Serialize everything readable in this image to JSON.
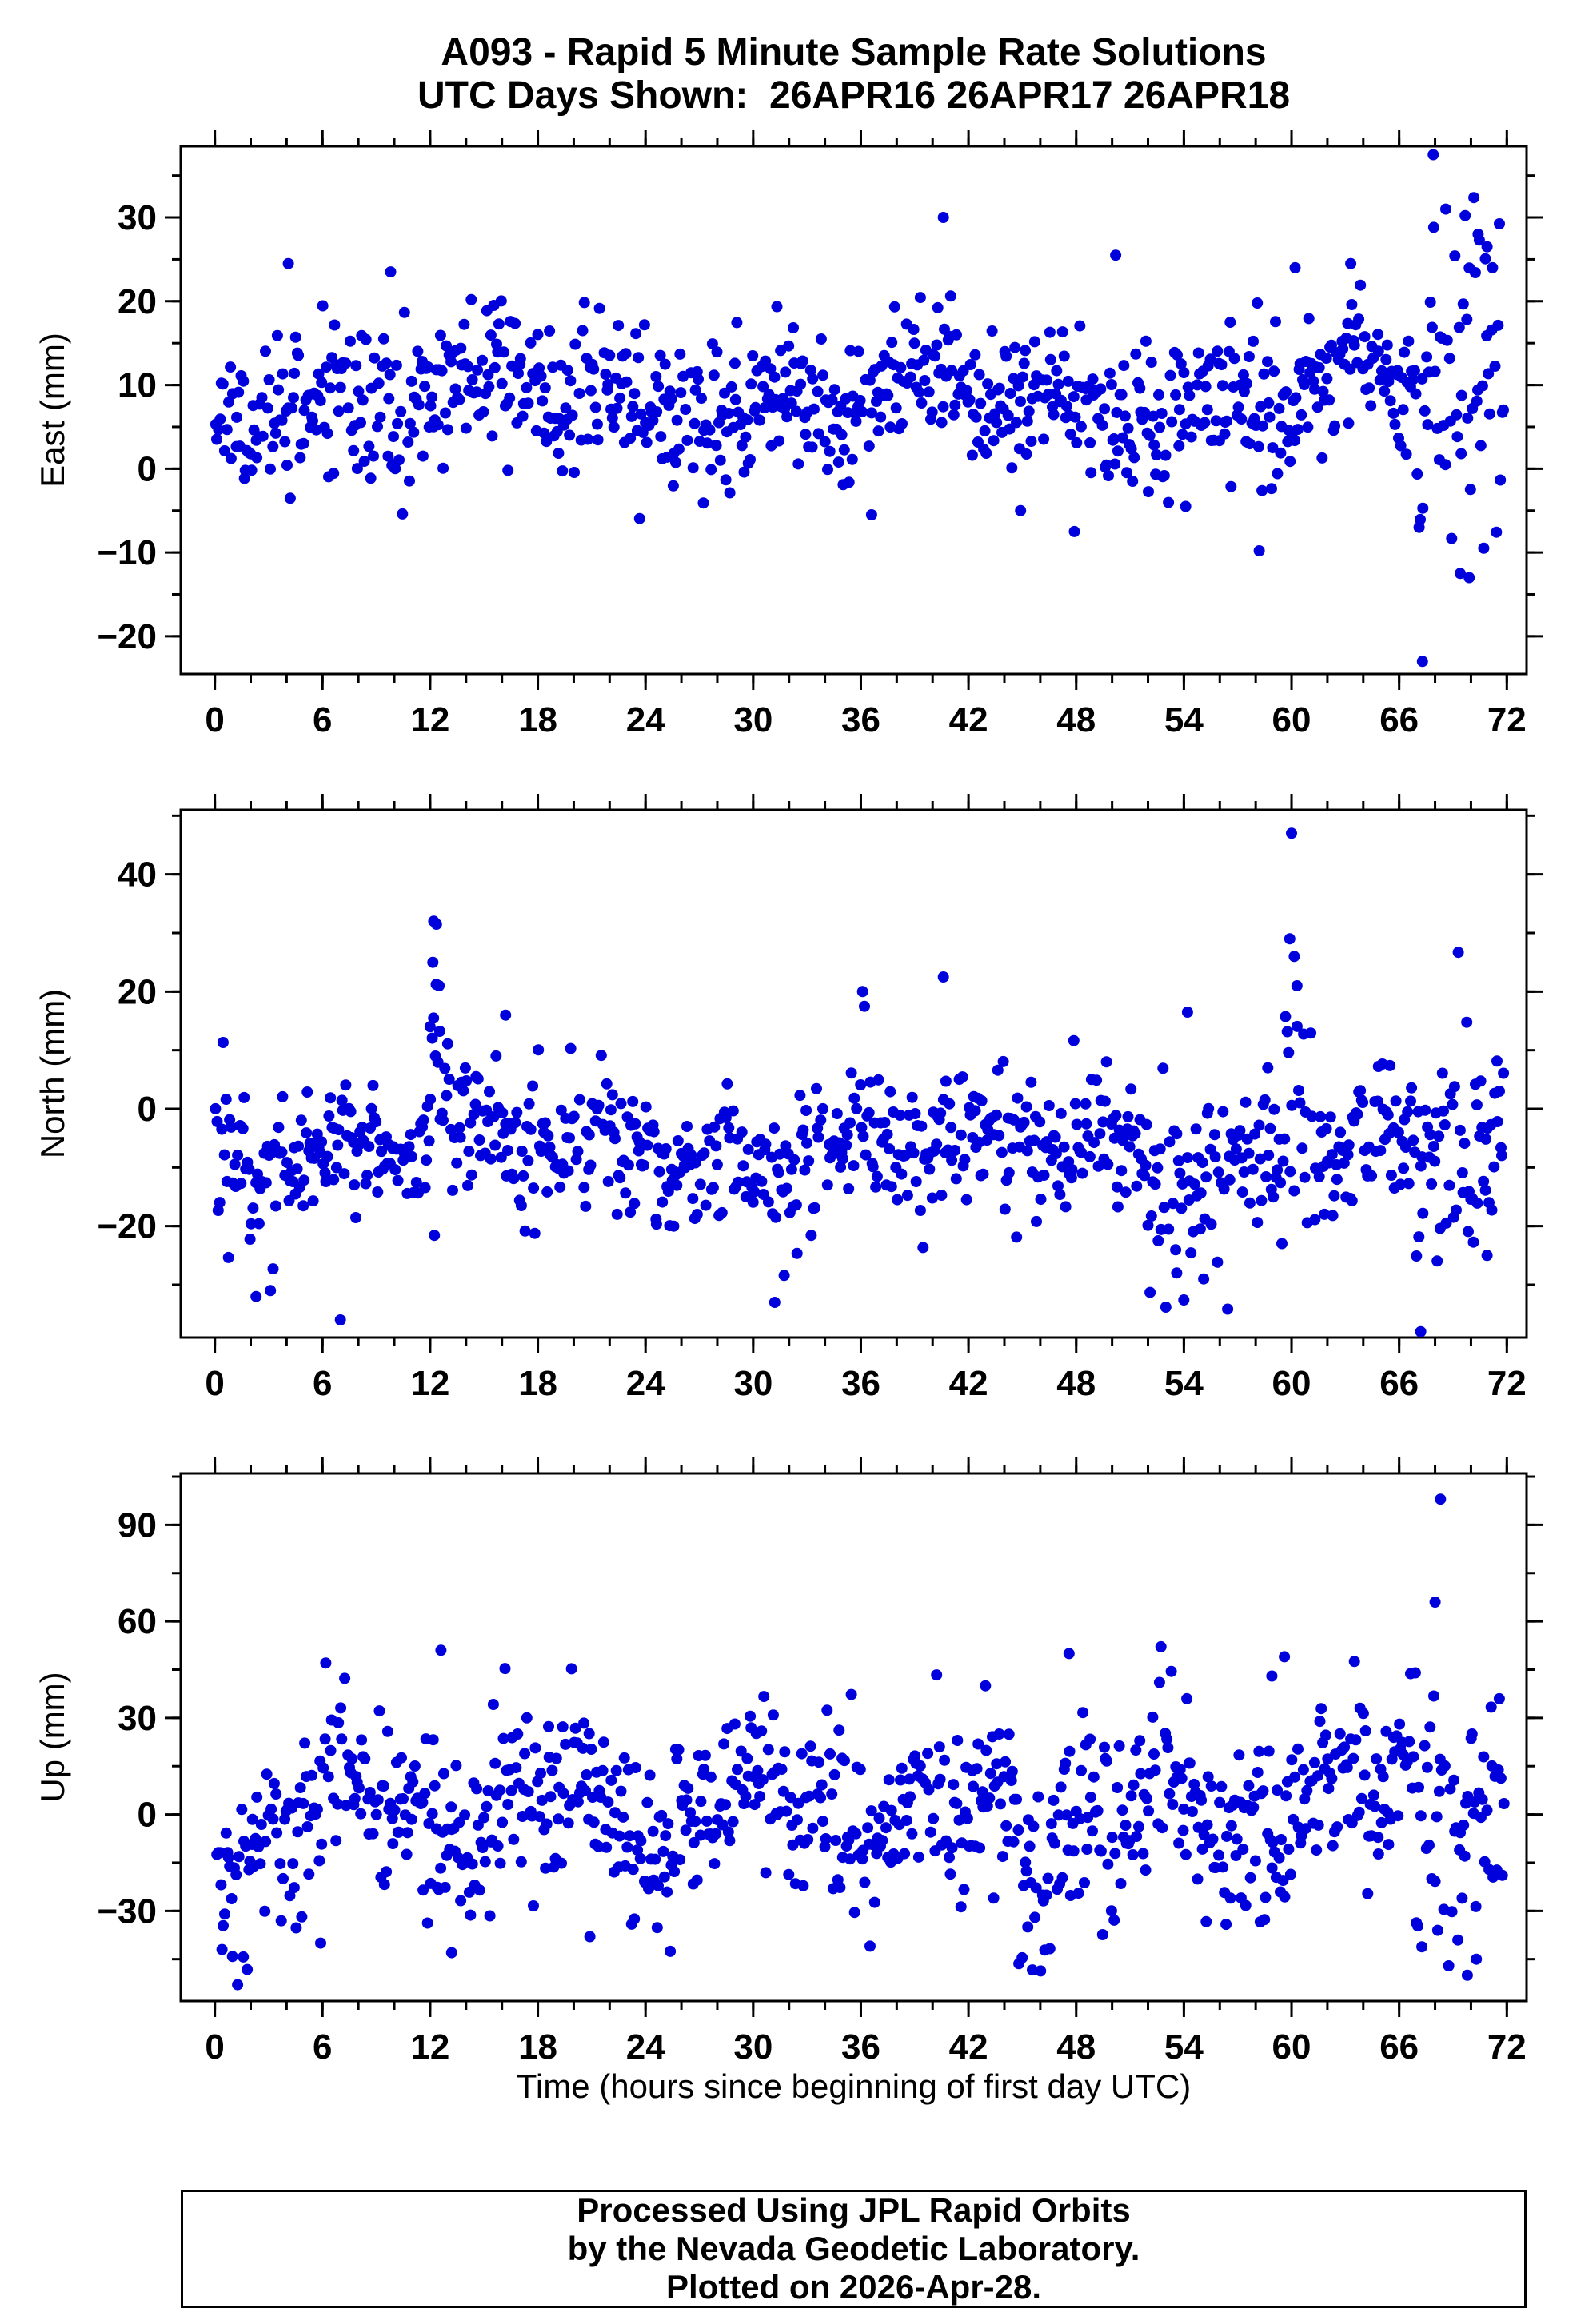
{
  "title_line1": "A093 - Rapid 5 Minute Sample Rate Solutions",
  "title_line2": "UTC Days Shown:  26APR16 26APR17 26APR18",
  "footer_lines": [
    "Processed Using JPL Rapid Orbits",
    "by the Nevada Geodetic Laboratory.",
    "Plotted on 2026-Apr-28."
  ],
  "point_color": "#0000dd",
  "chart_data": {
    "type": "scatter",
    "title": "A093 - Rapid 5 Minute Sample Rate Solutions",
    "subtitle": "UTC Days Shown: 26APR16 26APR17 26APR18",
    "legend": "none",
    "grid": false,
    "x": {
      "label": "Time (hours since beginning of first day UTC)",
      "lim": [
        -1.9,
        73.1
      ],
      "ticks": [
        0,
        6,
        12,
        18,
        24,
        30,
        36,
        42,
        48,
        54,
        60,
        66,
        72
      ],
      "minor_step": 2
    },
    "panels": [
      {
        "name": "east",
        "ylabel": "East (mm)",
        "ylim": [
          -24.5,
          38.5
        ],
        "yticks": [
          -20,
          -10,
          0,
          10,
          20,
          30
        ],
        "y_minor_step": 5,
        "n": 900,
        "seed": 11,
        "gap": 0.07,
        "mean": 8.3,
        "sd": 4.3,
        "wander": [
          {
            "amp": 2.2,
            "period": 23
          },
          {
            "amp": 1.8,
            "period": 8.3
          }
        ],
        "bands": [
          {
            "x0": 66.8,
            "x1": 71.6,
            "shift": 1,
            "sd_mult": 2.8
          }
        ],
        "outliers": [
          [
            40.6,
            30
          ],
          [
            67.9,
            37.5
          ],
          [
            67.3,
            -23
          ],
          [
            69.4,
            -12.5
          ],
          [
            69.9,
            -13
          ],
          [
            58.2,
            -9.8
          ],
          [
            63.3,
            24.5
          ],
          [
            4.1,
            24.5
          ],
          [
            9.8,
            23.5
          ],
          [
            70.4,
            28
          ],
          [
            70.9,
            26.5
          ],
          [
            71.2,
            24
          ],
          [
            47.9,
            -7.5
          ],
          [
            36.6,
            -5.5
          ],
          [
            44.9,
            -5
          ],
          [
            54.1,
            -4.5
          ],
          [
            68.6,
            31
          ],
          [
            60.2,
            24
          ],
          [
            50.2,
            25.5
          ]
        ]
      },
      {
        "name": "north",
        "ylabel": "North (mm)",
        "ylim": [
          -39,
          51
        ],
        "yticks": [
          -20,
          0,
          20,
          40
        ],
        "y_minor_step": 10,
        "n": 900,
        "seed": 22,
        "gap": 0.07,
        "mean": -7,
        "sd": 5.8,
        "wander": [
          {
            "amp": 2.8,
            "period": 27
          },
          {
            "amp": 2.4,
            "period": 7.1
          }
        ],
        "bands": [
          {
            "x0": 11.7,
            "x1": 13.1,
            "shift": 10,
            "sd_mult": 1.9
          },
          {
            "x0": 59.4,
            "x1": 61.2,
            "shift": 8,
            "sd_mult": 2.2
          },
          {
            "x0": 51.5,
            "x1": 56.5,
            "shift": -4,
            "sd_mult": 1.7
          },
          {
            "x0": 66.6,
            "x1": 71.6,
            "shift": -3,
            "sd_mult": 1.9
          }
        ],
        "outliers": [
          [
            12.2,
            32
          ],
          [
            12.35,
            31.5
          ],
          [
            12.15,
            25
          ],
          [
            12.5,
            21
          ],
          [
            12.0,
            14
          ],
          [
            12.3,
            9
          ],
          [
            60.0,
            47
          ],
          [
            59.9,
            29
          ],
          [
            60.15,
            26
          ],
          [
            60.3,
            21
          ],
          [
            36.1,
            20
          ],
          [
            36.2,
            17.5
          ],
          [
            40.6,
            22.5
          ],
          [
            16.2,
            16
          ],
          [
            54.2,
            16.5
          ],
          [
            2.3,
            -32
          ],
          [
            3.1,
            -31
          ],
          [
            7.0,
            -36
          ],
          [
            31.2,
            -33
          ],
          [
            67.2,
            -38
          ],
          [
            70.9,
            -25
          ],
          [
            53.6,
            -28
          ],
          [
            55.1,
            -29
          ]
        ]
      },
      {
        "name": "up",
        "ylabel": "Up (mm)",
        "ylim": [
          -58,
          106
        ],
        "yticks": [
          -30,
          0,
          30,
          60,
          90
        ],
        "y_minor_step": 15,
        "n": 900,
        "seed": 33,
        "gap": 0.07,
        "mean": 1,
        "sd": 13.5,
        "wander": [
          {
            "amp": 9,
            "period": 11.2
          },
          {
            "amp": 6,
            "period": 4.6
          }
        ],
        "bands": [
          {
            "x0": 0,
            "x1": 2.2,
            "shift": -14,
            "sd_mult": 1.1
          },
          {
            "x0": 44.6,
            "x1": 46.6,
            "shift": -16,
            "sd_mult": 1.2
          },
          {
            "x0": 66.6,
            "x1": 71.8,
            "shift": -2,
            "sd_mult": 1.5
          }
        ],
        "outliers": [
          [
            68.3,
            98
          ],
          [
            68.0,
            66
          ],
          [
            12.6,
            51
          ],
          [
            47.6,
            50
          ],
          [
            59.6,
            49
          ],
          [
            0.4,
            -42
          ],
          [
            13.2,
            -43
          ],
          [
            69.8,
            -50
          ],
          [
            70.3,
            -45
          ],
          [
            5.9,
            -40
          ],
          [
            20.9,
            -38
          ],
          [
            45.3,
            -35
          ],
          [
            66.9,
            44
          ],
          [
            58.9,
            43
          ]
        ]
      }
    ]
  }
}
